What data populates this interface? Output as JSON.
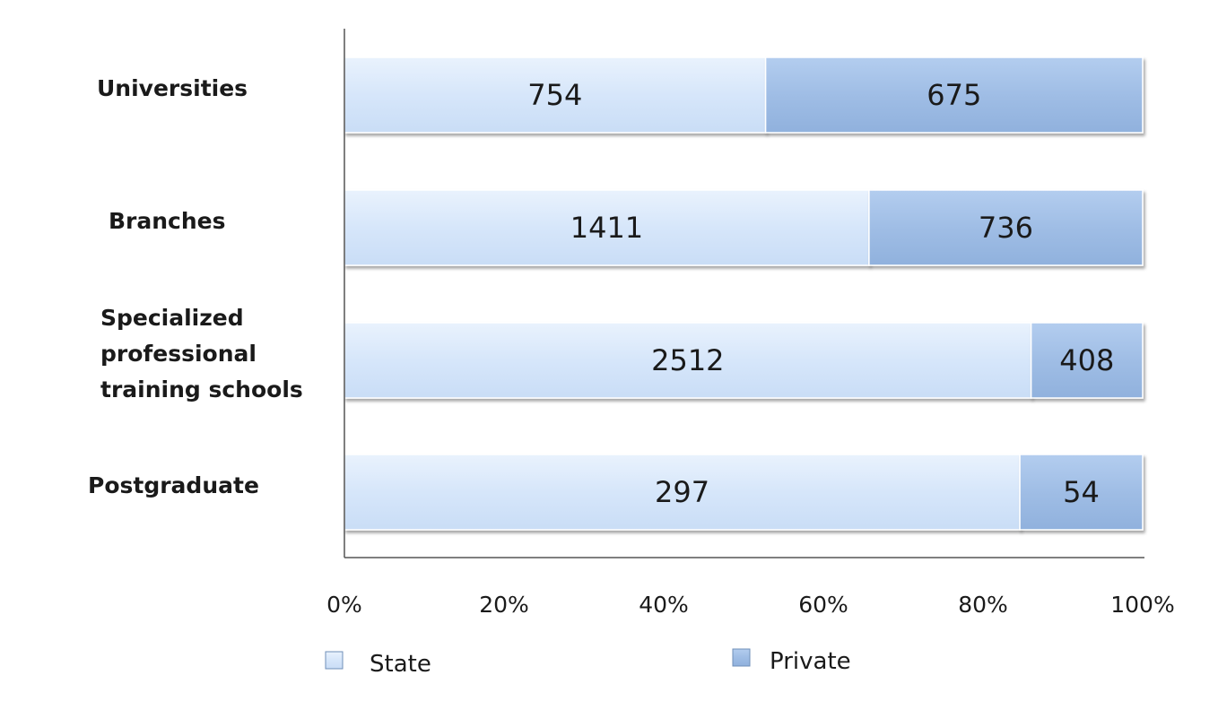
{
  "chart_data": {
    "type": "bar",
    "orientation": "horizontal",
    "stacked": "percent",
    "categories": [
      [
        "Universities"
      ],
      [
        "Branches"
      ],
      [
        "Specialized",
        "professional",
        "training schools"
      ],
      [
        "Postgraduate"
      ]
    ],
    "series": [
      {
        "name": "State",
        "values": [
          754,
          1411,
          2512,
          297
        ],
        "color": "#d6e6fa"
      },
      {
        "name": "Private",
        "values": [
          675,
          736,
          408,
          54
        ],
        "color": "#9fbde5"
      }
    ],
    "xlim": [
      0,
      100
    ],
    "x_ticks": [
      "0%",
      "20%",
      "40%",
      "60%",
      "80%",
      "100%"
    ],
    "title": "",
    "xlabel": "",
    "ylabel": "",
    "grid": false,
    "legend": "bottom",
    "data_labels": true
  }
}
